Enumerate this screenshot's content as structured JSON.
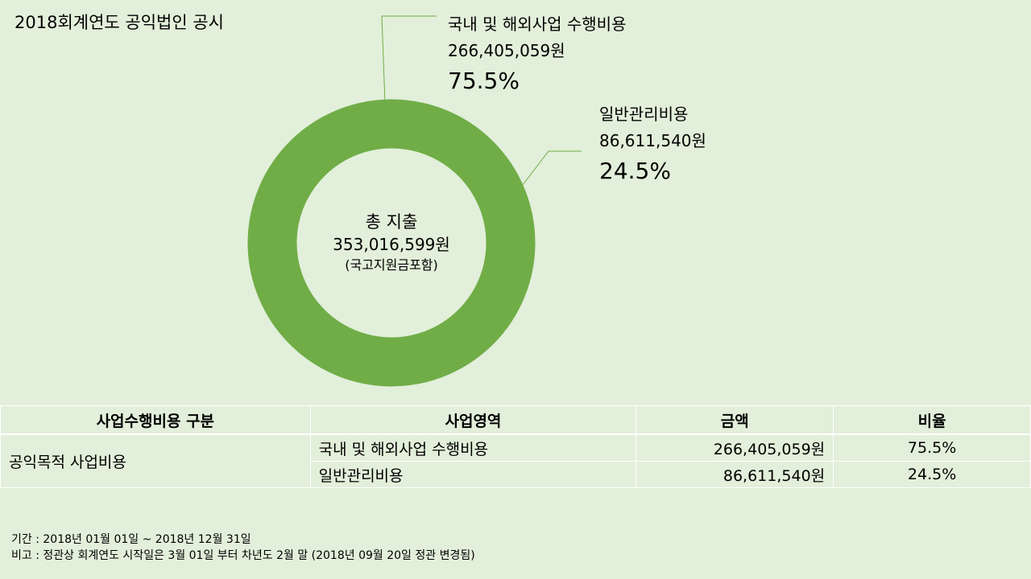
{
  "page": {
    "title": "2018회계연도 공익법인 공시"
  },
  "chart_data": {
    "type": "pie",
    "style": "donut",
    "series": [
      {
        "name": "국내 및 해외사업 수행비용",
        "amount_label": "266,405,059원",
        "percent_label": "75.5%",
        "value": 266405059,
        "percent": 75.5
      },
      {
        "name": "일반관리비용",
        "amount_label": "86,611,540원",
        "percent_label": "24.5%",
        "value": 86611540,
        "percent": 24.5
      }
    ],
    "center": {
      "line1": "총 지출",
      "line2": "353,016,599원",
      "line3": "(국고지원금포함)"
    },
    "colors": {
      "slice": "#70ad47",
      "leader": "#70ad47",
      "background": "#e2efda"
    }
  },
  "table": {
    "headers": [
      "사업수행비용 구분",
      "사업영역",
      "금액",
      "비율"
    ],
    "purpose": "공익목적 사업비용",
    "rows": [
      {
        "area": "국내 및 해외사업 수행비용",
        "amount": "266,405,059원",
        "ratio": "75.5%"
      },
      {
        "area": "일반관리비용",
        "amount": "86,611,540원",
        "ratio": "24.5%"
      }
    ]
  },
  "footnotes": {
    "period": "기간 : 2018년 01월 01일 ~ 2018년 12월 31일",
    "note": "비고 : 정관상 회계연도 시작일은 3월 01일 부터 차년도 2월 말 (2018년 09월 20일 정관 변경됨)"
  }
}
